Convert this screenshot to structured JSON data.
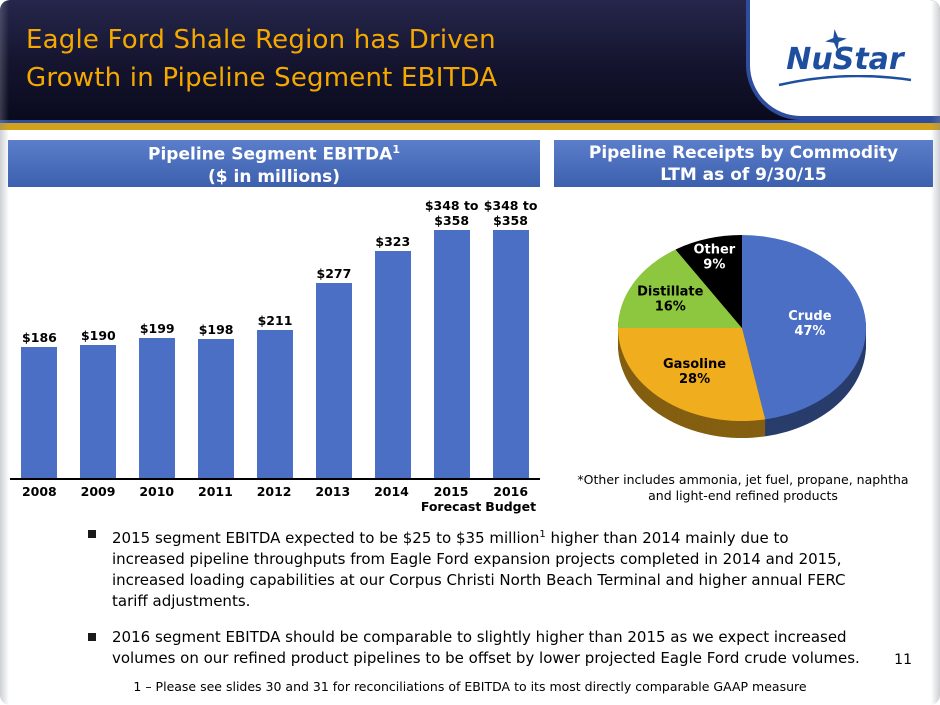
{
  "slide": {
    "title_line1": "Eagle Ford Shale Region has Driven",
    "title_line2": "Growth in Pipeline Segment EBITDA",
    "page_number": "11",
    "footnote": "1 – Please see slides 30 and 31 for reconciliations of EBITDA to its most directly comparable GAAP measure",
    "colors": {
      "header_bg": "#14142E",
      "title_gold": "#F5A800",
      "accent_gold": "#D2A21C",
      "accent_blue": "#2E4D9E",
      "panel_blue": "#4467B2"
    }
  },
  "logo": {
    "text": "NuStar",
    "star_icon": "star-icon",
    "color": "#1D4F9E"
  },
  "left_panel": {
    "title": "Pipeline Segment EBITDA",
    "title_sup": "1",
    "subtitle": "($ in millions)"
  },
  "right_panel": {
    "title": "Pipeline Receipts by Commodity",
    "subtitle": "LTM as of 9/30/15",
    "footnote_line1": "*Other includes ammonia, jet fuel, propane, naphtha",
    "footnote_line2": "and light-end refined products"
  },
  "bullets": [
    {
      "part1": "2015 segment EBITDA expected to be $25 to $35 million",
      "sup": "1",
      "part2": " higher than 2014 mainly due to increased pipeline throughputs from Eagle Ford expansion projects completed in 2014 and 2015, increased loading capabilities at our Corpus Christi North Beach Terminal and higher annual FERC tariff adjustments."
    },
    {
      "part1": "2016 segment EBITDA should be comparable to slightly higher than 2015 as we expect increased volumes on our refined product pipelines to be offset by lower projected Eagle Ford crude volumes.",
      "sup": "",
      "part2": ""
    }
  ],
  "chart_data": [
    {
      "type": "bar",
      "title": "Pipeline Segment EBITDA ($ in millions)",
      "categories": [
        "2008",
        "2009",
        "2010",
        "2011",
        "2012",
        "2013",
        "2014",
        "2015\nForecast",
        "2016\nBudget"
      ],
      "values": [
        186,
        190,
        199,
        198,
        211,
        277,
        323,
        353,
        353
      ],
      "value_labels": [
        "$186",
        "$190",
        "$199",
        "$198",
        "$211",
        "$277",
        "$323",
        "$348 to\n$358",
        "$348 to\n$358"
      ],
      "bar_color": "#4A6FC4",
      "xlabel": "",
      "ylabel": "$ in millions",
      "ylim": [
        0,
        380
      ],
      "grid": false,
      "legend": "none"
    },
    {
      "type": "pie",
      "title": "Pipeline Receipts by Commodity LTM as of 9/30/15",
      "labels": [
        "Crude",
        "Gasoline",
        "Distillate",
        "Other"
      ],
      "values": [
        47,
        28,
        16,
        9
      ],
      "unit": "%",
      "colors": [
        "#4A6FC4",
        "#F0AD1E",
        "#8DC63F",
        "#000000"
      ],
      "label_colors": [
        "#FFFFFF",
        "#000000",
        "#000000",
        "#FFFFFF"
      ],
      "start_angle": 0,
      "direction": "clockwise",
      "style": "3d"
    }
  ]
}
